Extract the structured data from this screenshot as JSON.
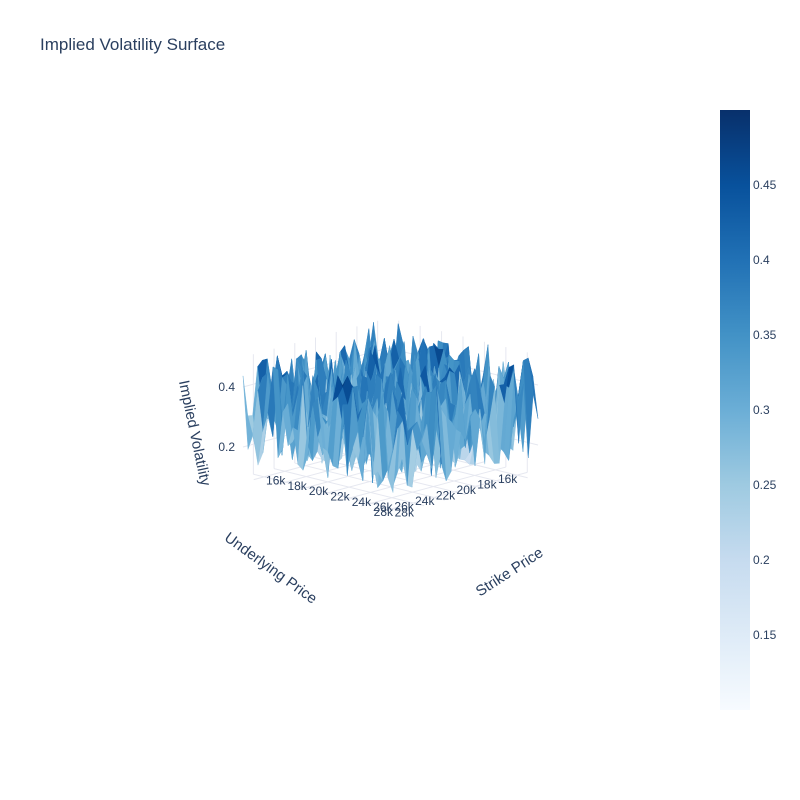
{
  "chart_data": {
    "type": "surface",
    "title": "Implied Volatility Surface",
    "x_axis": {
      "label": "Strike Price",
      "range": [
        15000,
        29000
      ],
      "ticks": [
        16000,
        18000,
        20000,
        22000,
        24000,
        26000,
        28000
      ],
      "tick_labels": [
        "16k",
        "18k",
        "20k",
        "22k",
        "24k",
        "26k",
        "28k"
      ]
    },
    "y_axis": {
      "label": "Underlying Price",
      "range": [
        15000,
        29000
      ],
      "ticks": [
        16000,
        18000,
        20000,
        22000,
        24000,
        26000,
        28000
      ],
      "tick_labels": [
        "16k",
        "18k",
        "20k",
        "22k",
        "24k",
        "26k",
        "28k"
      ]
    },
    "z_axis": {
      "label": "Implied Volatility",
      "range": [
        0.1,
        0.5
      ],
      "ticks": [
        0.2,
        0.4
      ],
      "tick_labels": [
        "0.2",
        "0.4"
      ]
    },
    "colorscale": "Blues",
    "colorscale_stops": [
      "#f7fbff",
      "#deebf7",
      "#c6dbef",
      "#9ecae1",
      "#6baed6",
      "#4292c6",
      "#2171b5",
      "#08519c",
      "#08306b"
    ],
    "colorbar": {
      "range": [
        0.1,
        0.5
      ],
      "ticks": [
        0.15,
        0.2,
        0.25,
        0.3,
        0.35,
        0.4,
        0.45
      ],
      "tick_labels": [
        "0.15",
        "0.2",
        "0.25",
        "0.3",
        "0.35",
        "0.4",
        "0.45"
      ]
    },
    "grid_size": 30,
    "z_values_note": "noisy surface, values approximately uniformly distributed between 0.1 and 0.5",
    "grid": true,
    "legend": "none"
  }
}
